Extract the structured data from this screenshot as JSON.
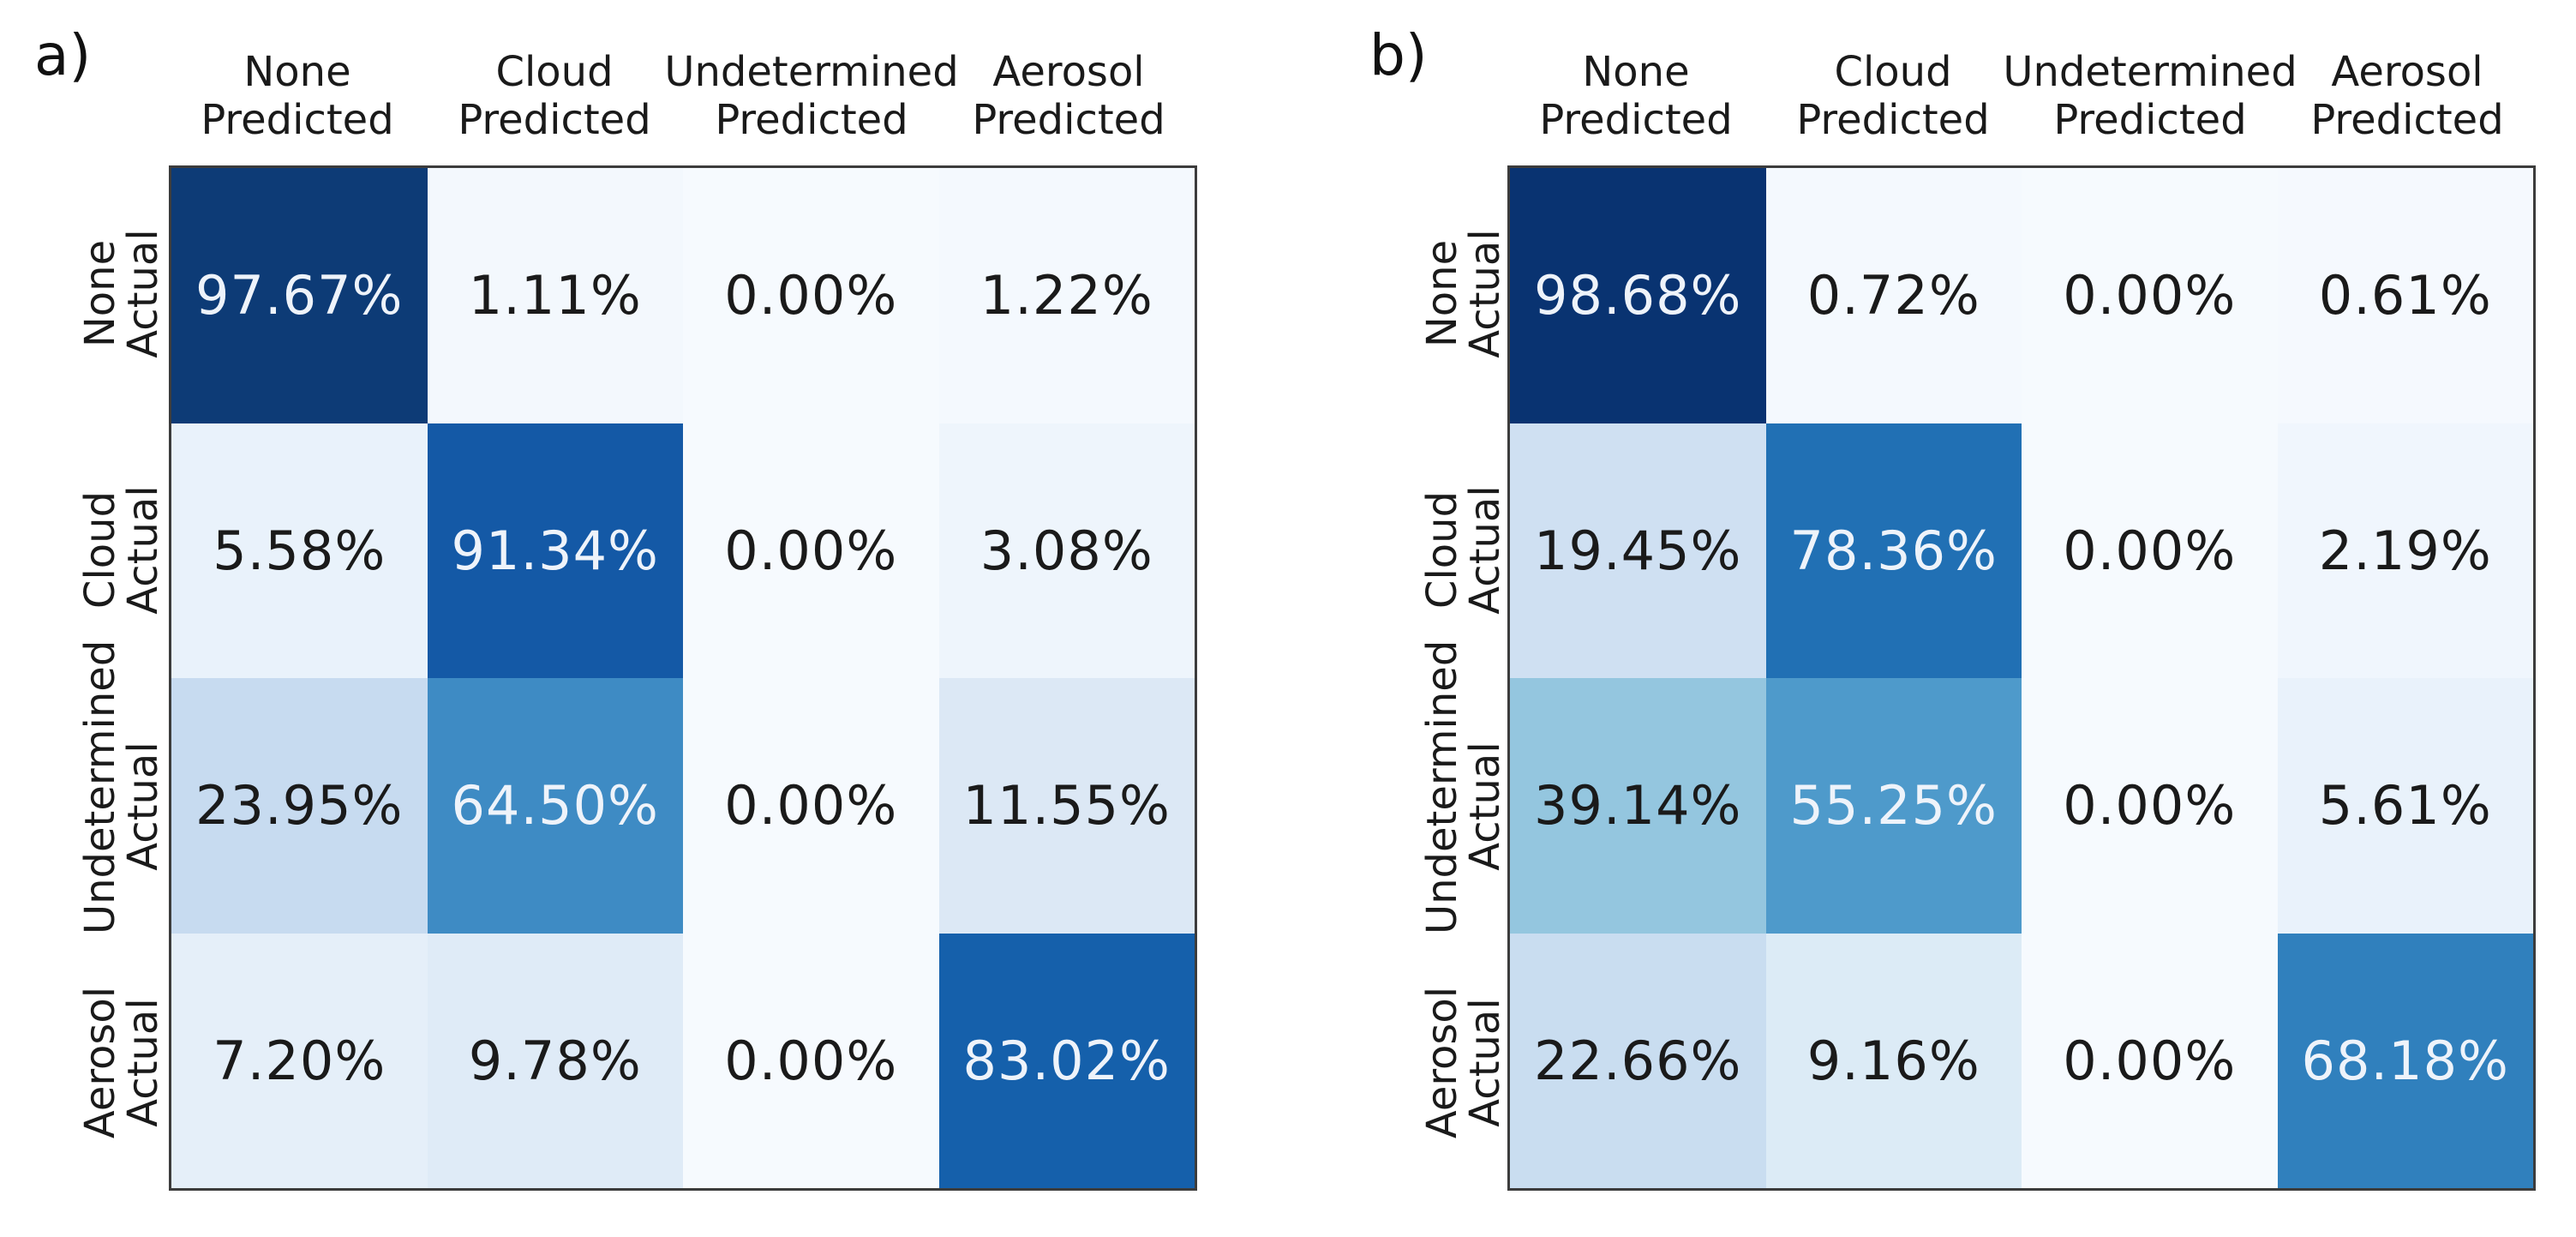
{
  "panels": [
    {
      "label": "a)",
      "col_headers": [
        {
          "line1": "None",
          "line2": "Predicted"
        },
        {
          "line1": "Cloud",
          "line2": "Predicted"
        },
        {
          "line1": "Undetermined",
          "line2": "Predicted"
        },
        {
          "line1": "Aerosol",
          "line2": "Predicted"
        }
      ],
      "row_headers": [
        {
          "line1": "None",
          "line2": "Actual"
        },
        {
          "line1": "Cloud",
          "line2": "Actual"
        },
        {
          "line1": "Undetermined",
          "line2": "Actual"
        },
        {
          "line1": "Aerosol",
          "line2": "Actual"
        }
      ],
      "cells": [
        [
          {
            "value": "97.67%",
            "bg": "#0d3b76",
            "fg": "#eef3fa"
          },
          {
            "value": "1.11%",
            "bg": "#f3f8fd",
            "fg": "#1a1a1a"
          },
          {
            "value": "0.00%",
            "bg": "#f6fafe",
            "fg": "#1a1a1a"
          },
          {
            "value": "1.22%",
            "bg": "#f4f9fe",
            "fg": "#1a1a1a"
          }
        ],
        [
          {
            "value": "5.58%",
            "bg": "#e9f2fb",
            "fg": "#1a1a1a"
          },
          {
            "value": "91.34%",
            "bg": "#1459a6",
            "fg": "#eef3fa"
          },
          {
            "value": "0.00%",
            "bg": "#f6fafe",
            "fg": "#1a1a1a"
          },
          {
            "value": "3.08%",
            "bg": "#eef5fc",
            "fg": "#1a1a1a"
          }
        ],
        [
          {
            "value": "23.95%",
            "bg": "#c7dbf0",
            "fg": "#1a1a1a"
          },
          {
            "value": "64.50%",
            "bg": "#3e8bc4",
            "fg": "#eef3fa"
          },
          {
            "value": "0.00%",
            "bg": "#f6fafe",
            "fg": "#1a1a1a"
          },
          {
            "value": "11.55%",
            "bg": "#dce8f5",
            "fg": "#1a1a1a"
          }
        ],
        [
          {
            "value": "7.20%",
            "bg": "#e5eff9",
            "fg": "#1a1a1a"
          },
          {
            "value": "9.78%",
            "bg": "#dfebf7",
            "fg": "#1a1a1a"
          },
          {
            "value": "0.00%",
            "bg": "#f6fafe",
            "fg": "#1a1a1a"
          },
          {
            "value": "83.02%",
            "bg": "#1560ab",
            "fg": "#eef3fa"
          }
        ]
      ]
    },
    {
      "label": "b)",
      "col_headers": [
        {
          "line1": "None",
          "line2": "Predicted"
        },
        {
          "line1": "Cloud",
          "line2": "Predicted"
        },
        {
          "line1": "Undetermined",
          "line2": "Predicted"
        },
        {
          "line1": "Aerosol",
          "line2": "Predicted"
        }
      ],
      "row_headers": [
        {
          "line1": "None",
          "line2": "Actual"
        },
        {
          "line1": "Cloud",
          "line2": "Actual"
        },
        {
          "line1": "Undetermined",
          "line2": "Actual"
        },
        {
          "line1": "Aerosol",
          "line2": "Actual"
        }
      ],
      "cells": [
        [
          {
            "value": "98.68%",
            "bg": "#093371",
            "fg": "#eef3fa"
          },
          {
            "value": "0.72%",
            "bg": "#f4f9fe",
            "fg": "#1a1a1a"
          },
          {
            "value": "0.00%",
            "bg": "#f6fafe",
            "fg": "#1a1a1a"
          },
          {
            "value": "0.61%",
            "bg": "#f5f9fe",
            "fg": "#1a1a1a"
          }
        ],
        [
          {
            "value": "19.45%",
            "bg": "#cfe0f2",
            "fg": "#1a1a1a"
          },
          {
            "value": "78.36%",
            "bg": "#2170b4",
            "fg": "#eef3fa"
          },
          {
            "value": "0.00%",
            "bg": "#f6fafe",
            "fg": "#1a1a1a"
          },
          {
            "value": "2.19%",
            "bg": "#f0f6fd",
            "fg": "#1a1a1a"
          }
        ],
        [
          {
            "value": "39.14%",
            "bg": "#94c6df",
            "fg": "#1a1a1a"
          },
          {
            "value": "55.25%",
            "bg": "#4e9acb",
            "fg": "#eef3fa"
          },
          {
            "value": "0.00%",
            "bg": "#f6fafe",
            "fg": "#1a1a1a"
          },
          {
            "value": "5.61%",
            "bg": "#e9f2fb",
            "fg": "#1a1a1a"
          }
        ],
        [
          {
            "value": "22.66%",
            "bg": "#c9ddf0",
            "fg": "#1a1a1a"
          },
          {
            "value": "9.16%",
            "bg": "#dcebf6",
            "fg": "#1a1a1a"
          },
          {
            "value": "0.00%",
            "bg": "#f6fafe",
            "fg": "#1a1a1a"
          },
          {
            "value": "68.18%",
            "bg": "#3080bd",
            "fg": "#eef3fa"
          }
        ]
      ]
    }
  ],
  "chart_data": [
    {
      "type": "heatmap",
      "title": "a)",
      "x_labels": [
        "None Predicted",
        "Cloud Predicted",
        "Undetermined Predicted",
        "Aerosol Predicted"
      ],
      "y_labels": [
        "None Actual",
        "Cloud Actual",
        "Undetermined Actual",
        "Aerosol Actual"
      ],
      "values_percent": [
        [
          97.67,
          1.11,
          0.0,
          1.22
        ],
        [
          5.58,
          91.34,
          0.0,
          3.08
        ],
        [
          23.95,
          64.5,
          0.0,
          11.55
        ],
        [
          7.2,
          9.78,
          0.0,
          83.02
        ]
      ],
      "colormap": "Blues",
      "value_range": [
        0,
        100
      ],
      "legend": "none",
      "grid": "off"
    },
    {
      "type": "heatmap",
      "title": "b)",
      "x_labels": [
        "None Predicted",
        "Cloud Predicted",
        "Undetermined Predicted",
        "Aerosol Predicted"
      ],
      "y_labels": [
        "None Actual",
        "Cloud Actual",
        "Undetermined Actual",
        "Aerosol Actual"
      ],
      "values_percent": [
        [
          98.68,
          0.72,
          0.0,
          0.61
        ],
        [
          19.45,
          78.36,
          0.0,
          2.19
        ],
        [
          39.14,
          55.25,
          0.0,
          5.61
        ],
        [
          22.66,
          9.16,
          0.0,
          68.18
        ]
      ],
      "colormap": "Blues",
      "value_range": [
        0,
        100
      ],
      "legend": "none",
      "grid": "off"
    }
  ]
}
